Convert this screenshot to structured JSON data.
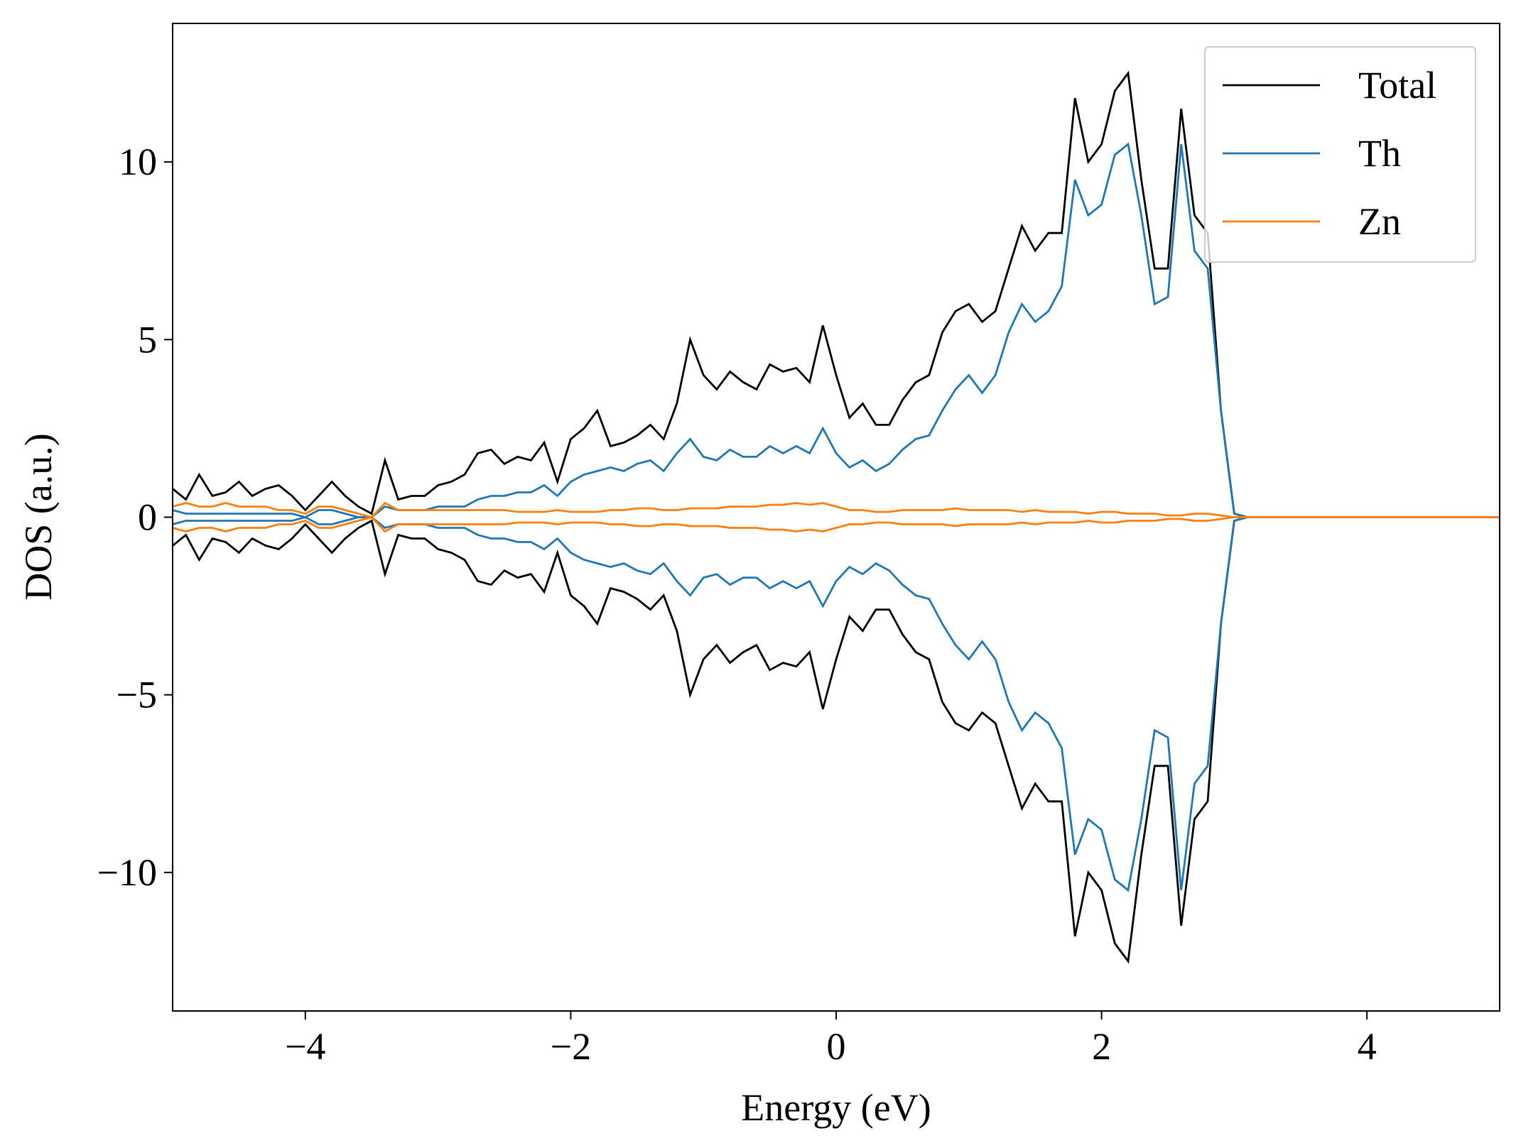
{
  "chart_data": {
    "type": "line",
    "xlabel": "Energy (eV)",
    "ylabel": "DOS (a.u.)",
    "xlim": [
      -5,
      5
    ],
    "ylim": [
      -13.9,
      13.9
    ],
    "xticks": [
      {
        "value": -4,
        "label": "−4"
      },
      {
        "value": -2,
        "label": "−2"
      },
      0,
      2,
      4
    ],
    "yticks": [
      {
        "value": -10,
        "label": "−10"
      },
      {
        "value": -5,
        "label": "−5"
      },
      0,
      5,
      10
    ],
    "legend": "upper right",
    "x": [
      -5.0,
      -4.9,
      -4.8,
      -4.7,
      -4.6,
      -4.5,
      -4.4,
      -4.3,
      -4.2,
      -4.1,
      -4.0,
      -3.9,
      -3.8,
      -3.7,
      -3.6,
      -3.5,
      -3.4,
      -3.3,
      -3.2,
      -3.1,
      -3.0,
      -2.9,
      -2.8,
      -2.7,
      -2.6,
      -2.5,
      -2.4,
      -2.3,
      -2.2,
      -2.1,
      -2.0,
      -1.9,
      -1.8,
      -1.7,
      -1.6,
      -1.5,
      -1.4,
      -1.3,
      -1.2,
      -1.1,
      -1.0,
      -0.9,
      -0.8,
      -0.7,
      -0.6,
      -0.5,
      -0.4,
      -0.3,
      -0.2,
      -0.1,
      0.0,
      0.1,
      0.2,
      0.3,
      0.4,
      0.5,
      0.6,
      0.7,
      0.8,
      0.9,
      1.0,
      1.1,
      1.2,
      1.3,
      1.4,
      1.5,
      1.6,
      1.7,
      1.8,
      1.9,
      2.0,
      2.1,
      2.2,
      2.3,
      2.4,
      2.5,
      2.6,
      2.7,
      2.8,
      2.9,
      3.0,
      3.1,
      3.2,
      3.3,
      3.4,
      3.5,
      3.6,
      3.7,
      3.8,
      3.9,
      4.0,
      4.1,
      4.2,
      4.3,
      4.4,
      4.5,
      4.6,
      4.7,
      4.8,
      4.9,
      5.0
    ],
    "series": [
      {
        "name": "Total",
        "color": "#000000",
        "values": [
          0.8,
          0.5,
          1.2,
          0.6,
          0.7,
          1.0,
          0.6,
          0.8,
          0.9,
          0.6,
          0.2,
          0.6,
          1.0,
          0.6,
          0.3,
          0.1,
          1.6,
          0.5,
          0.6,
          0.6,
          0.9,
          1.0,
          1.2,
          1.8,
          1.9,
          1.5,
          1.7,
          1.6,
          2.1,
          1.0,
          2.2,
          2.5,
          3.0,
          2.0,
          2.1,
          2.3,
          2.6,
          2.2,
          3.2,
          5.0,
          4.0,
          3.6,
          4.1,
          3.8,
          3.6,
          4.3,
          4.1,
          4.2,
          3.8,
          5.4,
          4.0,
          2.8,
          3.2,
          2.6,
          2.6,
          3.3,
          3.8,
          4.0,
          5.2,
          5.8,
          6.0,
          5.5,
          5.8,
          7.0,
          8.2,
          7.5,
          8.0,
          8.0,
          11.8,
          10.0,
          10.5,
          12.0,
          12.5,
          9.5,
          7.0,
          7.0,
          11.5,
          8.5,
          8.0,
          3.0,
          0.1,
          0,
          0,
          0,
          0,
          0,
          0,
          0,
          0,
          0,
          0,
          0,
          0,
          0,
          0,
          0,
          0,
          0,
          0,
          0,
          0
        ],
        "values_down": [
          -0.8,
          -0.5,
          -1.2,
          -0.6,
          -0.7,
          -1.0,
          -0.6,
          -0.8,
          -0.9,
          -0.6,
          -0.2,
          -0.6,
          -1.0,
          -0.6,
          -0.3,
          -0.1,
          -1.6,
          -0.5,
          -0.6,
          -0.6,
          -0.9,
          -1.0,
          -1.2,
          -1.8,
          -1.9,
          -1.5,
          -1.7,
          -1.6,
          -2.1,
          -1.0,
          -2.2,
          -2.5,
          -3.0,
          -2.0,
          -2.1,
          -2.3,
          -2.6,
          -2.2,
          -3.2,
          -5.0,
          -4.0,
          -3.6,
          -4.1,
          -3.8,
          -3.6,
          -4.3,
          -4.1,
          -4.2,
          -3.8,
          -5.4,
          -4.0,
          -2.8,
          -3.2,
          -2.6,
          -2.6,
          -3.3,
          -3.8,
          -4.0,
          -5.2,
          -5.8,
          -6.0,
          -5.5,
          -5.8,
          -7.0,
          -8.2,
          -7.5,
          -8.0,
          -8.0,
          -11.8,
          -10.0,
          -10.5,
          -12.0,
          -12.5,
          -9.5,
          -7.0,
          -7.0,
          -11.5,
          -8.5,
          -8.0,
          -3.0,
          -0.1,
          0,
          0,
          0,
          0,
          0,
          0,
          0,
          0,
          0,
          0,
          0,
          0,
          0,
          0,
          0,
          0,
          0,
          0,
          0,
          0
        ]
      },
      {
        "name": "Th",
        "color": "#1f77b4",
        "values": [
          0.2,
          0.1,
          0.1,
          0.1,
          0.1,
          0.1,
          0.1,
          0.1,
          0.1,
          0.1,
          0,
          0.2,
          0.2,
          0.1,
          0,
          0,
          0.3,
          0.2,
          0.2,
          0.2,
          0.3,
          0.3,
          0.3,
          0.5,
          0.6,
          0.6,
          0.7,
          0.7,
          0.9,
          0.6,
          1.0,
          1.2,
          1.3,
          1.4,
          1.3,
          1.5,
          1.6,
          1.3,
          1.8,
          2.2,
          1.7,
          1.6,
          1.9,
          1.7,
          1.7,
          2.0,
          1.8,
          2.0,
          1.8,
          2.5,
          1.8,
          1.4,
          1.6,
          1.3,
          1.5,
          1.9,
          2.2,
          2.3,
          3.0,
          3.6,
          4.0,
          3.5,
          4.0,
          5.2,
          6.0,
          5.5,
          5.8,
          6.5,
          9.5,
          8.5,
          8.8,
          10.2,
          10.5,
          8.5,
          6.0,
          6.2,
          10.5,
          7.5,
          7.0,
          3.0,
          0.1,
          0,
          0,
          0,
          0,
          0,
          0,
          0,
          0,
          0,
          0,
          0,
          0,
          0,
          0,
          0,
          0,
          0,
          0,
          0,
          0
        ],
        "values_down": [
          -0.2,
          -0.1,
          -0.1,
          -0.1,
          -0.1,
          -0.1,
          -0.1,
          -0.1,
          -0.1,
          -0.1,
          0,
          -0.2,
          -0.2,
          -0.1,
          0,
          0,
          -0.3,
          -0.2,
          -0.2,
          -0.2,
          -0.3,
          -0.3,
          -0.3,
          -0.5,
          -0.6,
          -0.6,
          -0.7,
          -0.7,
          -0.9,
          -0.6,
          -1.0,
          -1.2,
          -1.3,
          -1.4,
          -1.3,
          -1.5,
          -1.6,
          -1.3,
          -1.8,
          -2.2,
          -1.7,
          -1.6,
          -1.9,
          -1.7,
          -1.7,
          -2.0,
          -1.8,
          -2.0,
          -1.8,
          -2.5,
          -1.8,
          -1.4,
          -1.6,
          -1.3,
          -1.5,
          -1.9,
          -2.2,
          -2.3,
          -3.0,
          -3.6,
          -4.0,
          -3.5,
          -4.0,
          -5.2,
          -6.0,
          -5.5,
          -5.8,
          -6.5,
          -9.5,
          -8.5,
          -8.8,
          -10.2,
          -10.5,
          -8.5,
          -6.0,
          -6.2,
          -10.5,
          -7.5,
          -7.0,
          -3.0,
          -0.1,
          0,
          0,
          0,
          0,
          0,
          0,
          0,
          0,
          0,
          0,
          0,
          0,
          0,
          0,
          0,
          0,
          0,
          0,
          0,
          0
        ]
      },
      {
        "name": "Zn",
        "color": "#ff7f0e",
        "values": [
          0.3,
          0.4,
          0.3,
          0.3,
          0.4,
          0.3,
          0.3,
          0.3,
          0.2,
          0.2,
          0.1,
          0.3,
          0.3,
          0.2,
          0.1,
          0,
          0.4,
          0.2,
          0.2,
          0.2,
          0.2,
          0.2,
          0.2,
          0.2,
          0.2,
          0.2,
          0.15,
          0.15,
          0.15,
          0.2,
          0.15,
          0.15,
          0.15,
          0.2,
          0.2,
          0.25,
          0.25,
          0.2,
          0.2,
          0.25,
          0.25,
          0.25,
          0.3,
          0.3,
          0.3,
          0.35,
          0.35,
          0.4,
          0.35,
          0.4,
          0.3,
          0.2,
          0.2,
          0.15,
          0.15,
          0.2,
          0.2,
          0.2,
          0.2,
          0.25,
          0.2,
          0.2,
          0.2,
          0.2,
          0.15,
          0.2,
          0.15,
          0.15,
          0.15,
          0.1,
          0.15,
          0.15,
          0.1,
          0.1,
          0.1,
          0.05,
          0.05,
          0.1,
          0.1,
          0.05,
          0,
          0,
          0,
          0,
          0,
          0,
          0,
          0,
          0,
          0,
          0,
          0,
          0,
          0,
          0,
          0,
          0,
          0,
          0,
          0,
          0
        ],
        "values_down": [
          -0.3,
          -0.4,
          -0.3,
          -0.3,
          -0.4,
          -0.3,
          -0.3,
          -0.3,
          -0.2,
          -0.2,
          -0.1,
          -0.3,
          -0.3,
          -0.2,
          -0.1,
          0,
          -0.4,
          -0.2,
          -0.2,
          -0.2,
          -0.2,
          -0.2,
          -0.2,
          -0.2,
          -0.2,
          -0.2,
          -0.15,
          -0.15,
          -0.15,
          -0.2,
          -0.15,
          -0.15,
          -0.15,
          -0.2,
          -0.2,
          -0.25,
          -0.25,
          -0.2,
          -0.2,
          -0.25,
          -0.25,
          -0.25,
          -0.3,
          -0.3,
          -0.3,
          -0.35,
          -0.35,
          -0.4,
          -0.35,
          -0.4,
          -0.3,
          -0.2,
          -0.2,
          -0.15,
          -0.15,
          -0.2,
          -0.2,
          -0.2,
          -0.2,
          -0.25,
          -0.2,
          -0.2,
          -0.2,
          -0.2,
          -0.15,
          -0.2,
          -0.15,
          -0.15,
          -0.15,
          -0.1,
          -0.15,
          -0.15,
          -0.1,
          -0.1,
          -0.1,
          -0.05,
          -0.05,
          -0.1,
          -0.1,
          -0.05,
          0,
          0,
          0,
          0,
          0,
          0,
          0,
          0,
          0,
          0,
          0,
          0,
          0,
          0,
          0,
          0,
          0,
          0,
          0,
          0,
          0
        ]
      }
    ]
  }
}
